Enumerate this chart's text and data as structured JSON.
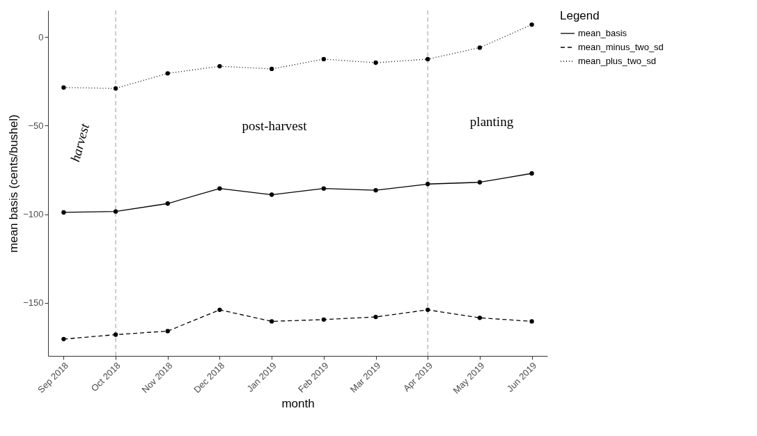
{
  "chart_data": {
    "type": "line",
    "xlabel": "month",
    "ylabel": "mean basis (cents/bushel)",
    "legend_title": "Legend",
    "legend": "right",
    "marker": "circle",
    "grid": false,
    "categories": [
      "Sep 2018",
      "Oct 2018",
      "Nov 2018",
      "Dec 2018",
      "Jan 2019",
      "Feb 2019",
      "Mar 2019",
      "Apr 2019",
      "May 2019",
      "Jun 2019"
    ],
    "ylim": [
      -180,
      15
    ],
    "yticks": [
      -150,
      -100,
      -50,
      0
    ],
    "series": [
      {
        "name": "mean_basis",
        "color": "#000000",
        "line_style": "solid",
        "values": [
          -99,
          -98.5,
          -94,
          -85.5,
          -89,
          -85.5,
          -86.5,
          -83,
          -82,
          -77
        ]
      },
      {
        "name": "mean_minus_two_sd",
        "color": "#000000",
        "line_style": "dashed",
        "values": [
          -170.5,
          -168,
          -166,
          -154,
          -160.5,
          -159.5,
          -158,
          -154,
          -158.5,
          -160.5
        ]
      },
      {
        "name": "mean_plus_two_sd",
        "color": "#000000",
        "line_style": "dotted",
        "values": [
          -28.5,
          -29,
          -20.5,
          -16.5,
          -18,
          -12.5,
          -14.5,
          -12.5,
          -6,
          7
        ]
      }
    ],
    "ref_lines": [
      {
        "axis": "x",
        "value": "Oct 2018",
        "color": "#999999",
        "line_style": "dashed"
      },
      {
        "axis": "x",
        "value": "Apr 2019",
        "color": "#999999",
        "line_style": "dashed"
      }
    ],
    "annotations": [
      "harvest",
      "post-harvest",
      "planting"
    ]
  }
}
